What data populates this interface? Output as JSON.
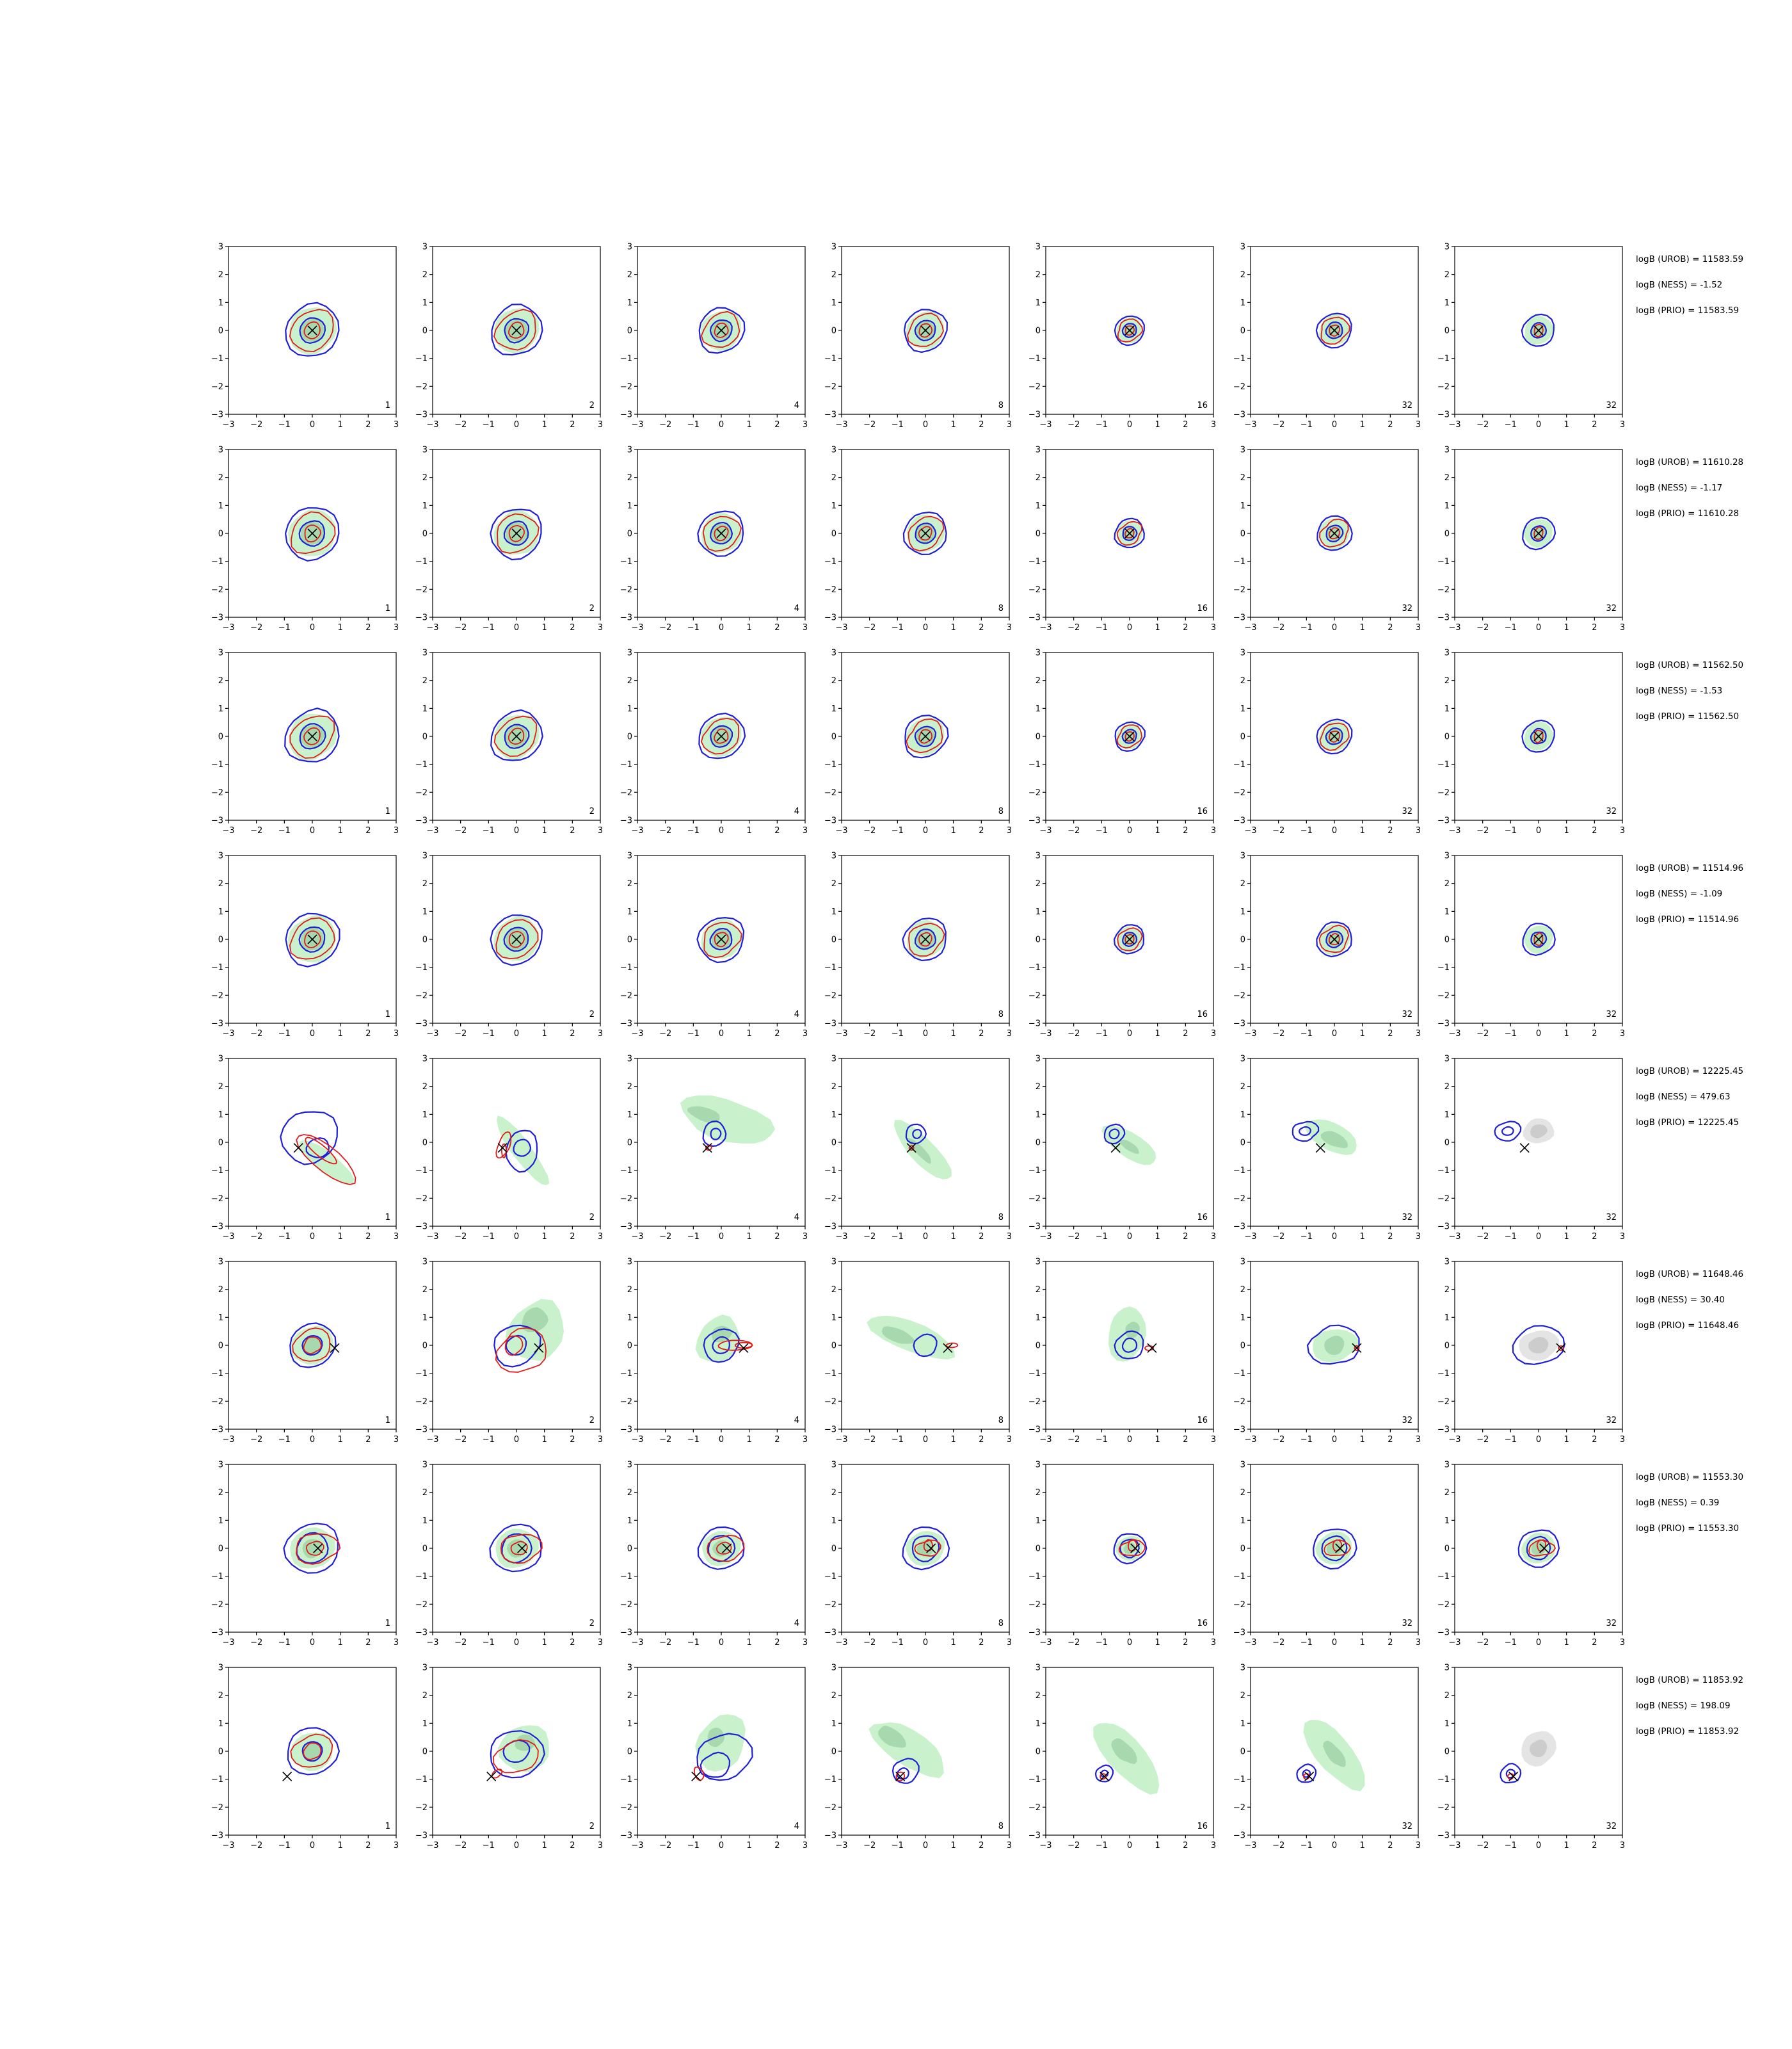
{
  "chart_data": {
    "type": "contour-grid",
    "rows": 8,
    "cols": 7,
    "xlim": [
      -3,
      3
    ],
    "ylim": [
      -3,
      3
    ],
    "xticks": [
      -3,
      -2,
      -1,
      0,
      1,
      2,
      3
    ],
    "yticks": [
      -3,
      -2,
      -1,
      0,
      1,
      2,
      3
    ],
    "tick_labels": [
      "−3",
      "−2",
      "−1",
      "0",
      "1",
      "2",
      "3"
    ],
    "panel_labels": [
      "1",
      "2",
      "4",
      "8",
      "16",
      "32",
      "32"
    ],
    "colors": {
      "blue_contour": "#1f1fd6",
      "red_contour": "#e01b1b",
      "green_fill_outer": "#c9f2cc",
      "green_fill_inner": "#a8d9ae",
      "gray_fill_outer": "#e4e4e4",
      "gray_fill_inner": "#cccccc",
      "marker": "#000000"
    },
    "row_markers": [
      [
        0.0,
        0.0
      ],
      [
        0.0,
        0.0
      ],
      [
        0.0,
        0.0
      ],
      [
        0.0,
        0.0
      ],
      [
        -0.5,
        -0.2
      ],
      [
        0.8,
        -0.1
      ],
      [
        0.2,
        0.0
      ],
      [
        -0.9,
        -0.9
      ]
    ],
    "logB": [
      {
        "urob": "logB (UROB) = 11583.59",
        "ness": "logB (NESS) = -1.52",
        "prio": "logB (PRIO) = 11583.59"
      },
      {
        "urob": "logB (UROB) = 11610.28",
        "ness": "logB (NESS) = -1.17",
        "prio": "logB (PRIO) = 11610.28"
      },
      {
        "urob": "logB (UROB) = 11562.50",
        "ness": "logB (NESS) = -1.53",
        "prio": "logB (PRIO) = 11562.50"
      },
      {
        "urob": "logB (UROB) = 11514.96",
        "ness": "logB (NESS) = -1.09",
        "prio": "logB (PRIO) = 11514.96"
      },
      {
        "urob": "logB (UROB) = 12225.45",
        "ness": "logB (NESS) = 479.63",
        "prio": "logB (PRIO) = 12225.45"
      },
      {
        "urob": "logB (UROB) = 11648.46",
        "ness": "logB (NESS) = 30.40",
        "prio": "logB (PRIO) = 11648.46"
      },
      {
        "urob": "logB (UROB) = 11553.30",
        "ness": "logB (NESS) = 0.39",
        "prio": "logB (PRIO) = 11553.30"
      },
      {
        "urob": "logB (UROB) = 11853.92",
        "ness": "logB (NESS) = 198.09",
        "prio": "logB (PRIO) = 11853.92"
      }
    ]
  }
}
